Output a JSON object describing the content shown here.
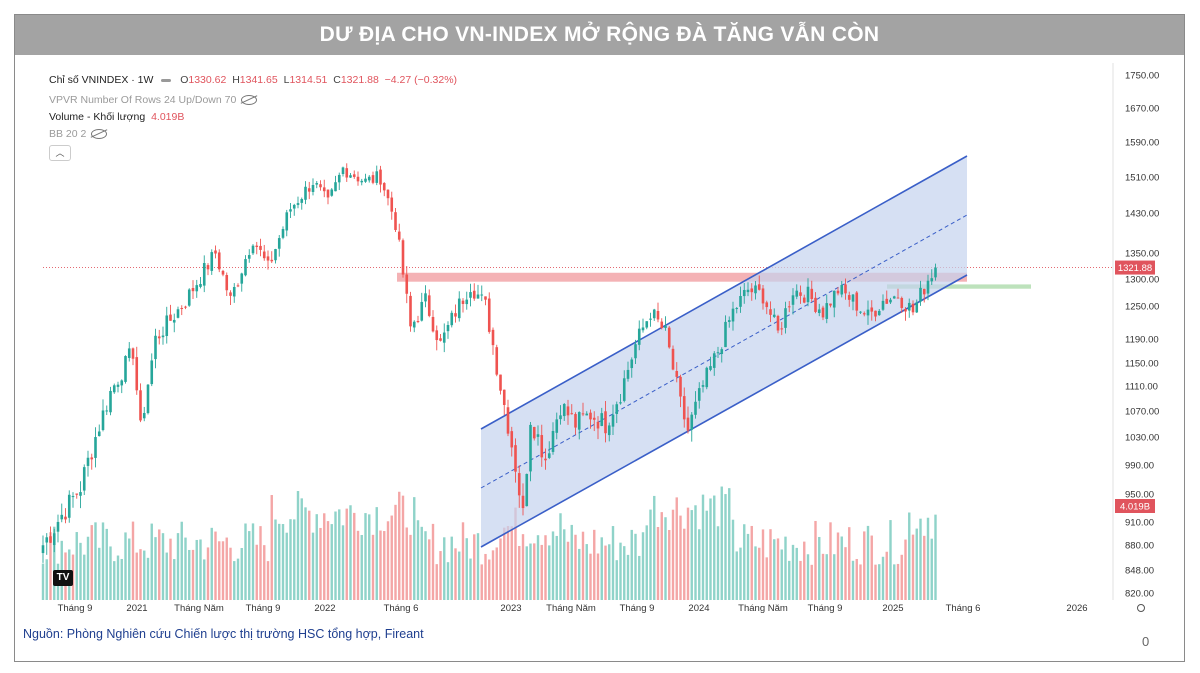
{
  "banner": {
    "title": "DƯ ĐỊA CHO VN-INDEX MỞ RỘNG ĐÀ TĂNG VẪN CÒN"
  },
  "legend": {
    "symbol": "Chỉ số VNINDEX · 1W",
    "open_label": "O",
    "open": "1330.62",
    "high_label": "H",
    "high": "1341.65",
    "low_label": "L",
    "low": "1314.51",
    "close_label": "C",
    "close": "1321.88",
    "change": "−4.27 (−0.32%)",
    "vpvr": "VPVR Number Of Rows 24 Up/Down 70",
    "volume_label": "Volume - Khối lượng",
    "volume_value": "4.019B",
    "bb": "BB 20 2"
  },
  "colors": {
    "up": "#26a69a",
    "down": "#ef5350",
    "vol_up": "#8fd3c9",
    "vol_down": "#f4a6a6",
    "channel_line": "#3a5fc8",
    "channel_fill": "#c5d3ee",
    "resistance": "#f2a5a8",
    "support": "#b6dfb5",
    "price_tag": "#e0545d"
  },
  "chart_data": {
    "type": "candlestick",
    "title": "",
    "timeframe": "1W",
    "y_axis": {
      "ticks": [
        820,
        848,
        880,
        910,
        950,
        990,
        1030,
        1070,
        1110,
        1150,
        1190,
        1250,
        1300,
        1350,
        1430,
        1510,
        1590,
        1670,
        1750
      ]
    },
    "x_axis": {
      "labels": [
        "Tháng 9",
        "2021",
        "Tháng Năm",
        "Tháng 9",
        "2022",
        "Tháng 6",
        "2023",
        "Tháng Năm",
        "Tháng 9",
        "2024",
        "Tháng Năm",
        "Tháng 9",
        "2025",
        "Tháng 6",
        "2026"
      ]
    },
    "price_path": [
      {
        "x": 0,
        "y": 880
      },
      {
        "x": 10,
        "y": 960
      },
      {
        "x": 18,
        "y": 1100
      },
      {
        "x": 24,
        "y": 1170
      },
      {
        "x": 26,
        "y": 1040
      },
      {
        "x": 30,
        "y": 1190
      },
      {
        "x": 38,
        "y": 1260
      },
      {
        "x": 46,
        "y": 1350
      },
      {
        "x": 50,
        "y": 1260
      },
      {
        "x": 56,
        "y": 1380
      },
      {
        "x": 60,
        "y": 1320
      },
      {
        "x": 66,
        "y": 1440
      },
      {
        "x": 72,
        "y": 1500
      },
      {
        "x": 76,
        "y": 1450
      },
      {
        "x": 80,
        "y": 1530
      },
      {
        "x": 86,
        "y": 1500
      },
      {
        "x": 90,
        "y": 1510
      },
      {
        "x": 94,
        "y": 1410
      },
      {
        "x": 98,
        "y": 1210
      },
      {
        "x": 102,
        "y": 1260
      },
      {
        "x": 106,
        "y": 1180
      },
      {
        "x": 110,
        "y": 1240
      },
      {
        "x": 114,
        "y": 1290
      },
      {
        "x": 118,
        "y": 1250
      },
      {
        "x": 122,
        "y": 1110
      },
      {
        "x": 126,
        "y": 990
      },
      {
        "x": 128,
        "y": 920
      },
      {
        "x": 130,
        "y": 1060
      },
      {
        "x": 134,
        "y": 1000
      },
      {
        "x": 138,
        "y": 1080
      },
      {
        "x": 142,
        "y": 1050
      },
      {
        "x": 146,
        "y": 1065
      },
      {
        "x": 150,
        "y": 1050
      },
      {
        "x": 154,
        "y": 1100
      },
      {
        "x": 158,
        "y": 1180
      },
      {
        "x": 162,
        "y": 1240
      },
      {
        "x": 166,
        "y": 1200
      },
      {
        "x": 170,
        "y": 1080
      },
      {
        "x": 172,
        "y": 1040
      },
      {
        "x": 176,
        "y": 1110
      },
      {
        "x": 180,
        "y": 1170
      },
      {
        "x": 184,
        "y": 1240
      },
      {
        "x": 188,
        "y": 1280
      },
      {
        "x": 192,
        "y": 1270
      },
      {
        "x": 196,
        "y": 1200
      },
      {
        "x": 200,
        "y": 1280
      },
      {
        "x": 204,
        "y": 1270
      },
      {
        "x": 208,
        "y": 1240
      },
      {
        "x": 212,
        "y": 1280
      },
      {
        "x": 216,
        "y": 1260
      },
      {
        "x": 220,
        "y": 1230
      },
      {
        "x": 224,
        "y": 1260
      },
      {
        "x": 228,
        "y": 1270
      },
      {
        "x": 232,
        "y": 1240
      },
      {
        "x": 236,
        "y": 1300
      },
      {
        "x": 238,
        "y": 1322
      }
    ],
    "annotations": {
      "resistance_zone": [
        1295,
        1312
      ],
      "support_zone": [
        1282,
        1290
      ],
      "last_price": "1321.88",
      "last_volume": "4.019B"
    }
  },
  "footer": {
    "source": "Nguồn: Phòng Nghiên cứu Chiến lược thị trường HSC tổng hợp, Fireant",
    "page_number": "0"
  }
}
